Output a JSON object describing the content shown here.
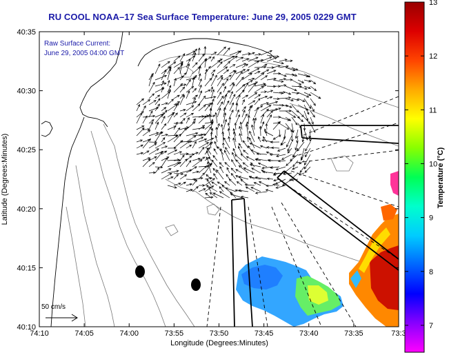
{
  "title": "RU COOL  NOAA–17  Sea Surface Temperature:  June 29, 2005 0229 GMT",
  "annotation": {
    "line1": "Raw Surface Current:",
    "line2": "June 29, 2005 04:00 GMT"
  },
  "scale_label": "50 cm/s",
  "x_axis": {
    "label": "Longitude (Degrees:Minutes)",
    "ticks": [
      "74:10",
      "74:05",
      "74:00",
      "73:55",
      "73:50",
      "73:45",
      "73:40",
      "73:35",
      "73:3"
    ]
  },
  "y_axis": {
    "label": "Latitude (Degrees:Minutes)",
    "ticks": [
      "40:35",
      "40:30",
      "40:25",
      "40:20",
      "40:15",
      "40:10"
    ]
  },
  "colorbar": {
    "label": "Temperature (°C)",
    "ticks": [
      "13",
      "12",
      "11",
      "10",
      "9",
      "8",
      "7"
    ],
    "range": [
      6.5,
      13
    ],
    "colors": [
      "#ff00ff",
      "#8800ff",
      "#0000ff",
      "#0066ff",
      "#00ccff",
      "#00ffcc",
      "#00ff55",
      "#88ff00",
      "#ffff00",
      "#ffaa00",
      "#ff4400",
      "#dd0000",
      "#990000"
    ]
  }
}
